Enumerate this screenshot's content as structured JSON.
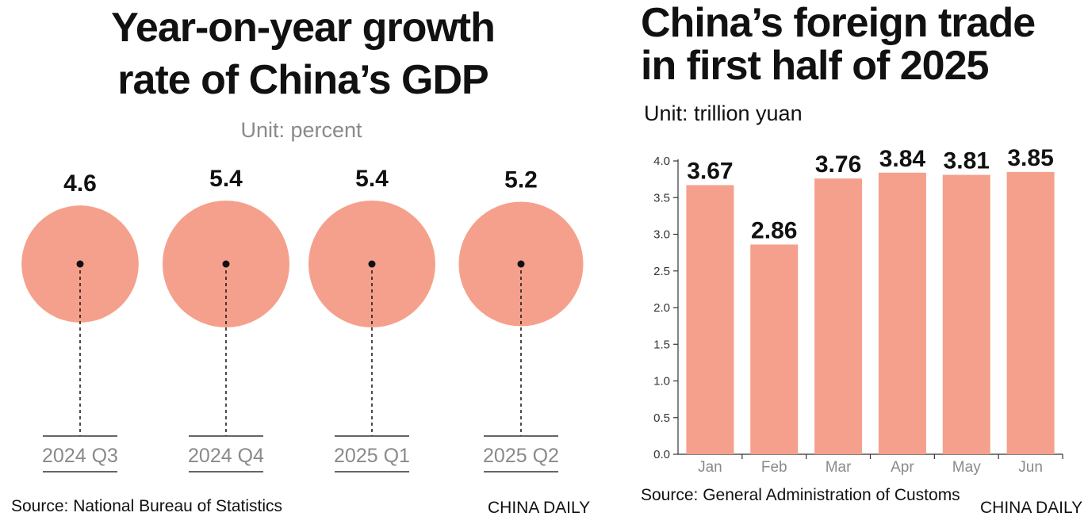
{
  "left_panel": {
    "title_line1": "Year-on-year growth",
    "title_line2": "rate of China’s GDP",
    "unit": "Unit: percent",
    "source": "Source: National Bureau of Statistics",
    "brand": "CHINA DAILY"
  },
  "right_panel": {
    "title_line1": "China’s foreign trade",
    "title_line2": "in first half of 2025",
    "unit": "Unit: trillion yuan",
    "source": "Source: General Administration of Customs",
    "brand": "CHINA DAILY"
  },
  "colors": {
    "fill": "#f5a08c",
    "text": "#111111",
    "muted": "#8a8a8a"
  },
  "chart_data": [
    {
      "type": "bubble",
      "title": "Year-on-year growth rate of China’s GDP",
      "unit": "Unit: percent",
      "categories": [
        "2024 Q3",
        "2024 Q4",
        "2025 Q1",
        "2025 Q2"
      ],
      "values": [
        4.6,
        5.4,
        5.4,
        5.2
      ],
      "value_labels": [
        "4.6",
        "5.4",
        "5.4",
        "5.2"
      ]
    },
    {
      "type": "bar",
      "title": "China’s foreign trade in first half of 2025",
      "unit": "Unit: trillion yuan",
      "categories": [
        "Jan",
        "Feb",
        "Mar",
        "Apr",
        "May",
        "Jun"
      ],
      "values": [
        3.67,
        2.86,
        3.76,
        3.84,
        3.81,
        3.85
      ],
      "value_labels": [
        "3.67",
        "2.86",
        "3.76",
        "3.84",
        "3.81",
        "3.85"
      ],
      "ylim": [
        0,
        4.0
      ],
      "yticks": [
        "0.0",
        "0.5",
        "1.0",
        "1.5",
        "2.0",
        "2.5",
        "3.0",
        "3.5",
        "4.0"
      ],
      "grid": false
    }
  ]
}
